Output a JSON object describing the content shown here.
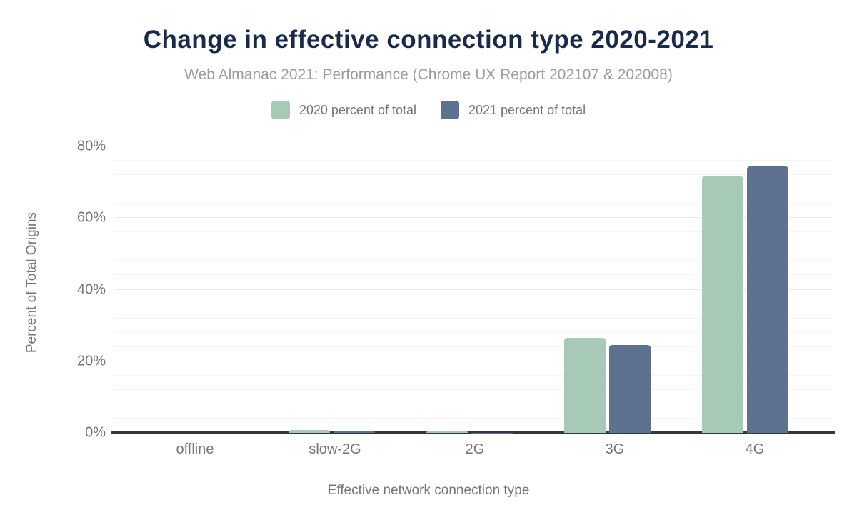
{
  "title": "Change in effective connection type 2020-2021",
  "subtitle": "Web Almanac 2021: Performance (Chrome UX Report 202107 & 202008)",
  "x_axis_title": "Effective network connection type",
  "y_axis_title": "Percent of Total Origins",
  "colors": {
    "title_text": "#1a2b49",
    "subtitle_text": "#9c9c9c",
    "axis_text": "#757575",
    "axis_line": "#35383b",
    "gridline_major": "#ebebeb",
    "gridline_minor": "#f4f4f4",
    "series_2020": "#a7cab7",
    "series_2021": "#5e7190",
    "background": "#ffffff"
  },
  "chart_data": {
    "type": "bar",
    "title": "Change in effective connection type 2020-2021",
    "subtitle": "Web Almanac 2021: Performance (Chrome UX Report 202107 & 202008)",
    "xlabel": "Effective network connection type",
    "ylabel": "Percent of Total Origins",
    "categories": [
      "offline",
      "slow-2G",
      "2G",
      "3G",
      "4G"
    ],
    "series": [
      {
        "name": "2020 percent of total",
        "color": "#a7cab7",
        "values": [
          0.0,
          0.8,
          0.5,
          26.5,
          71.6
        ]
      },
      {
        "name": "2021 percent of total",
        "color": "#5e7190",
        "values": [
          0.0,
          0.5,
          0.1,
          24.5,
          74.4
        ]
      }
    ],
    "yticks": [
      {
        "label": "0%",
        "value": 0
      },
      {
        "label": "20%",
        "value": 20
      },
      {
        "label": "40%",
        "value": 40
      },
      {
        "label": "60%",
        "value": 60
      },
      {
        "label": "80%",
        "value": 80
      }
    ],
    "ylim": [
      0,
      84
    ],
    "grid": {
      "major_step": 20,
      "minor_step": 4,
      "grid_on": true
    },
    "legend_position": "top",
    "value_unit": "%"
  }
}
